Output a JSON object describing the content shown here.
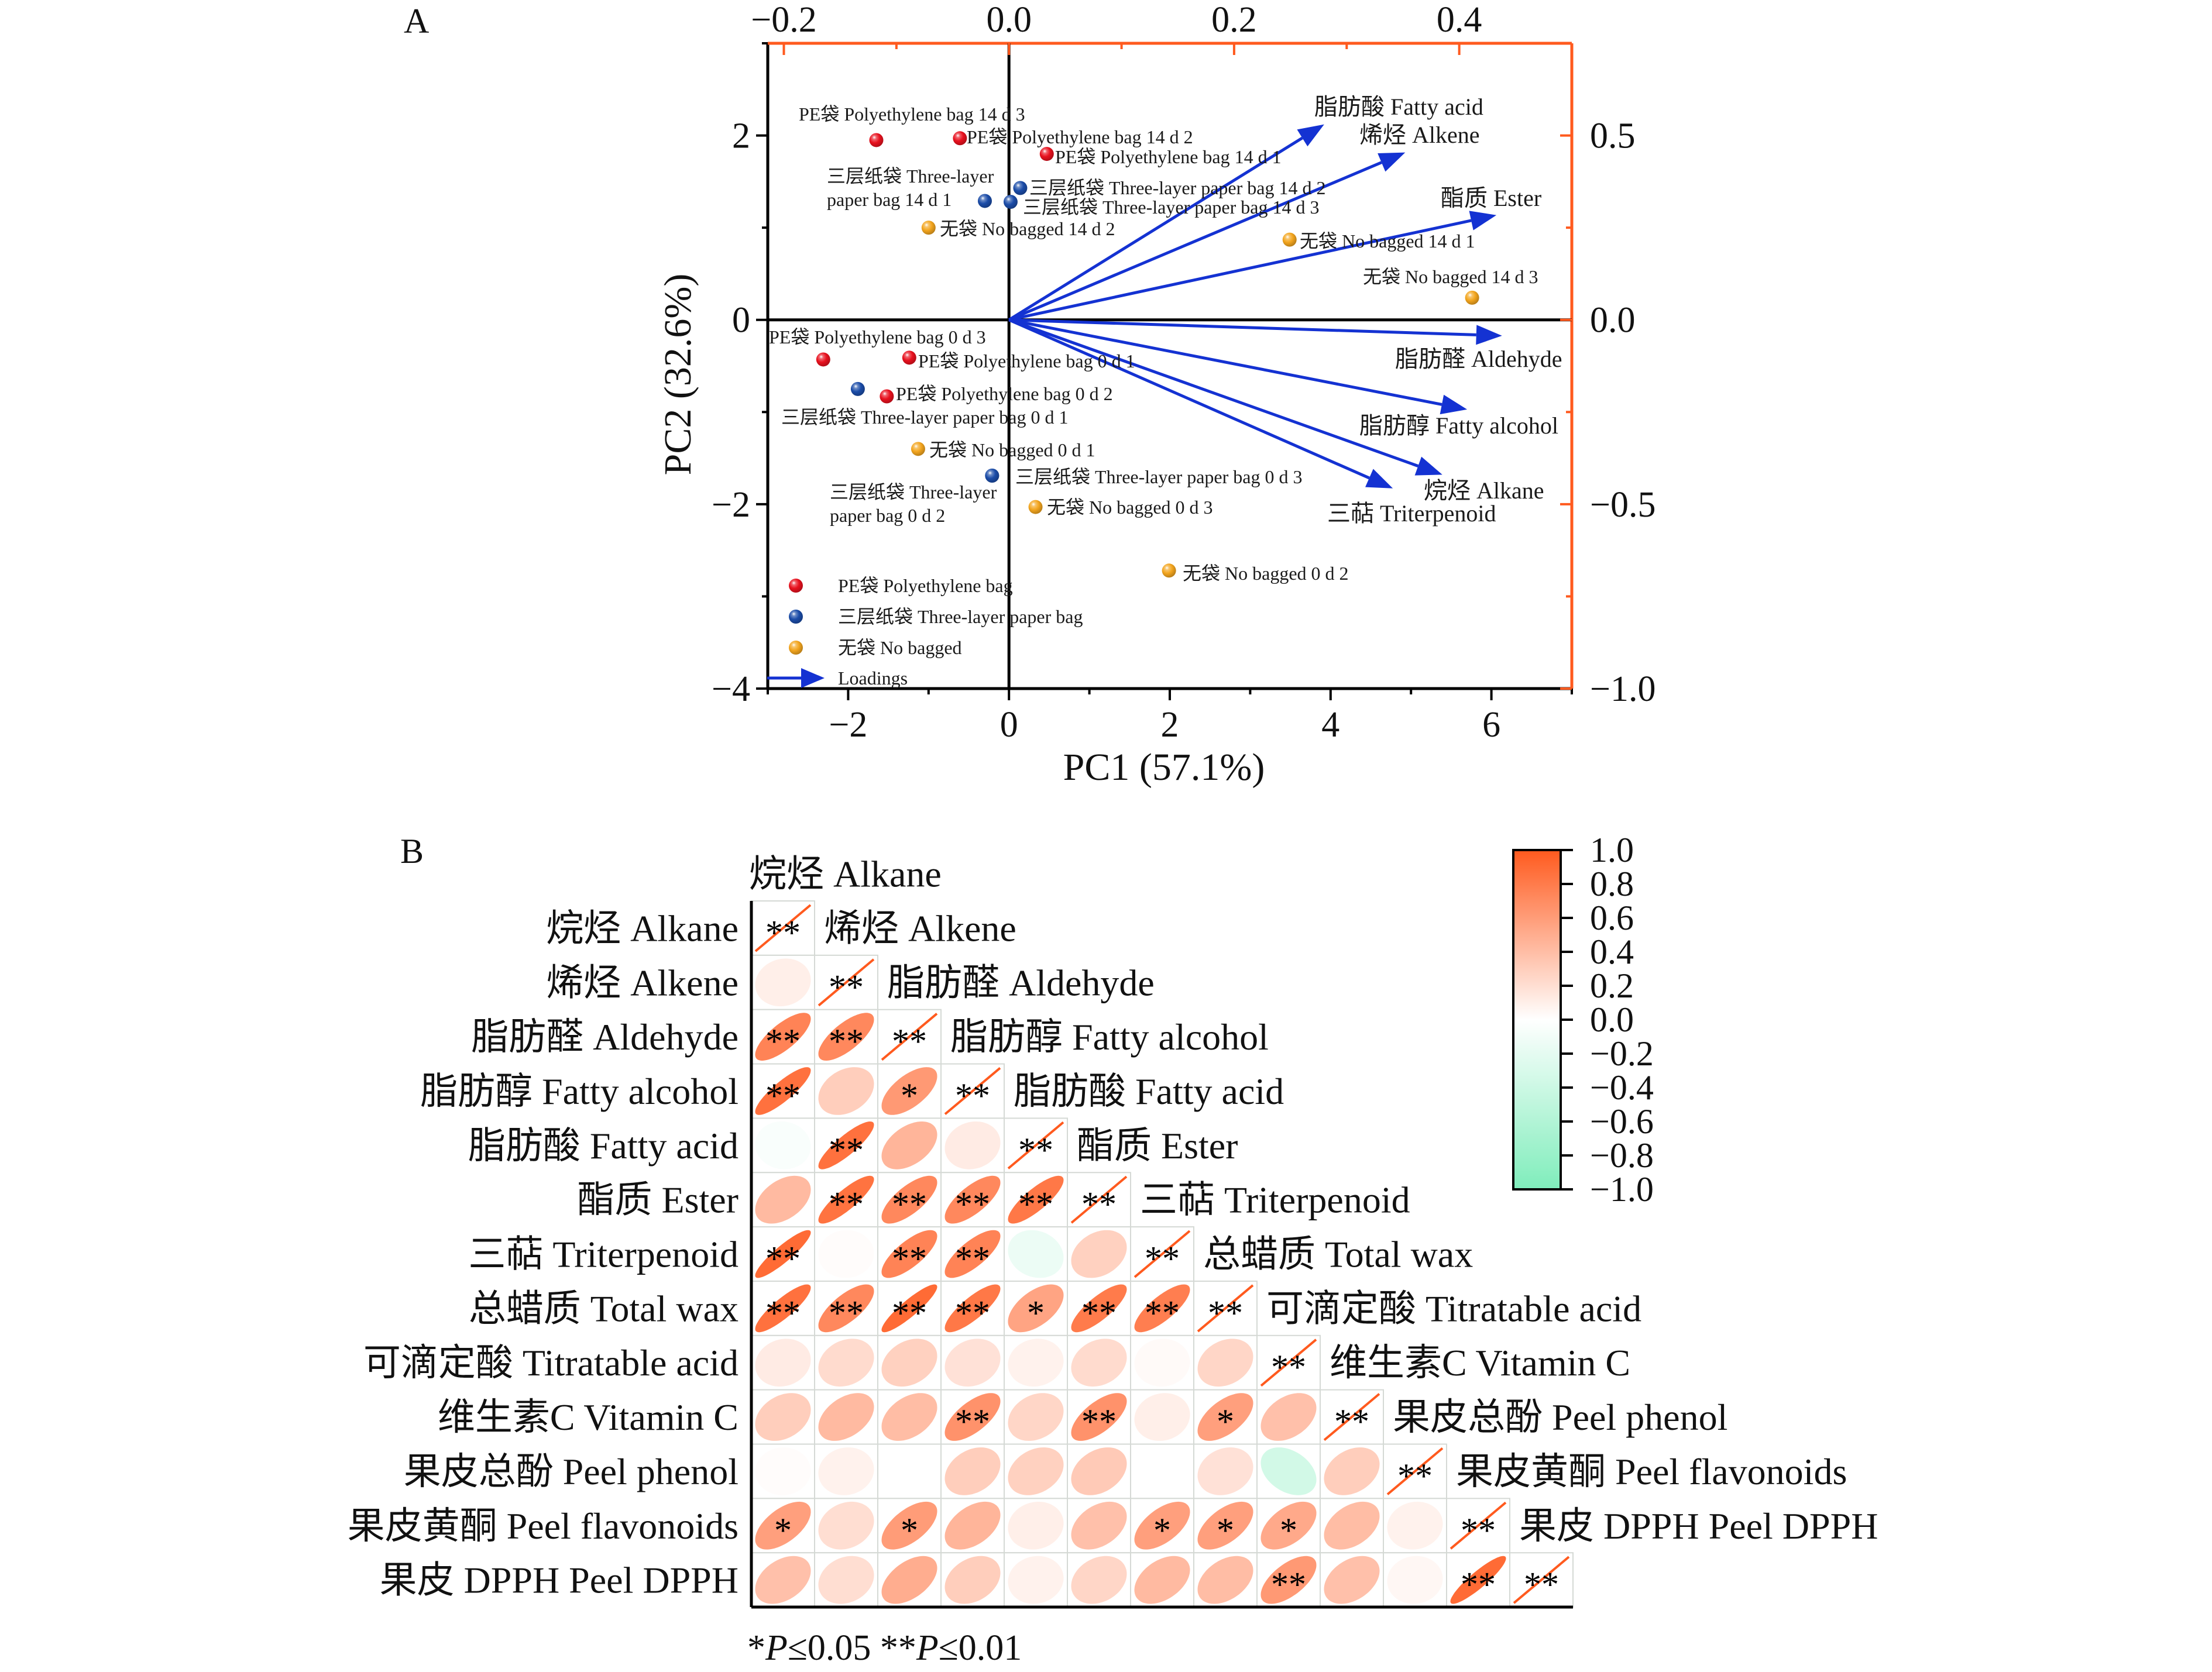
{
  "figure": {
    "panel_a_label": "A",
    "panel_b_label": "B"
  },
  "chart_data": [
    {
      "type": "scatter",
      "subtype": "PCA biplot (scores + loadings)",
      "title": "A",
      "xlabel": "PC1 (57.1%)",
      "ylabel": "PC2 (32.6%)",
      "xlim": [
        -3,
        7
      ],
      "ylim": [
        -4,
        3
      ],
      "x_ticks": [
        -2,
        0,
        2,
        4,
        6
      ],
      "x_tick_labels": [
        "−2",
        "0",
        "2",
        "4",
        "6"
      ],
      "y_ticks": [
        -4,
        -2,
        0,
        2
      ],
      "y_tick_labels": [
        "−4",
        "−2",
        "0",
        "2"
      ],
      "top_axis": {
        "lim": [
          -0.2143,
          0.5
        ],
        "ticks": [
          -0.2,
          0.0,
          0.2,
          0.4
        ],
        "tick_labels": [
          "−0.2",
          "0.0",
          "0.2",
          "0.4"
        ]
      },
      "right_axis": {
        "lim": [
          -1.0,
          0.75
        ],
        "ticks": [
          0.5,
          0.0,
          -0.5,
          -1.0
        ],
        "tick_labels": [
          "0.5",
          "0.0",
          "−0.5",
          "−1.0"
        ]
      },
      "grid": false,
      "colors": {
        "primary_axes": "#000000",
        "secondary_axes": "#FF5A1E",
        "loadings": "#1432D2"
      },
      "legend": {
        "position": "bottom-left",
        "loadings_label": "Loadings"
      },
      "series": [
        {
          "name": "PE袋 Polyethylene bag",
          "color": "#E8111E",
          "points": [
            {
              "label": [
                "PE袋 Polyethylene bag 14 d 3"
              ],
              "x": -1.65,
              "y": 1.95
            },
            {
              "label": [
                "PE袋 Polyethylene bag 14 d 2"
              ],
              "x": -0.61,
              "y": 1.97
            },
            {
              "label": [
                "PE袋 Polyethylene bag 14 d 1"
              ],
              "x": 0.47,
              "y": 1.8
            },
            {
              "label": [
                "PE袋 Polyethylene bag 0 d 3"
              ],
              "x": -2.31,
              "y": -0.43
            },
            {
              "label": [
                "PE袋 Polyethylene bag 0 d 1"
              ],
              "x": -1.24,
              "y": -0.41
            },
            {
              "label": [
                "PE袋 Polyethylene bag 0 d 2"
              ],
              "x": -1.52,
              "y": -0.83
            }
          ]
        },
        {
          "name": "三层纸袋 Three-layer paper bag",
          "color": "#1B4CA8",
          "points": [
            {
              "label": [
                "三层纸袋 Three-layer",
                "paper bag 14 d 1"
              ],
              "x": -0.3,
              "y": 1.29
            },
            {
              "label": [
                "三层纸袋 Three-layer paper bag 14 d 2"
              ],
              "x": 0.14,
              "y": 1.43
            },
            {
              "label": [
                "三层纸袋 Three-layer paper bag 14 d 3"
              ],
              "x": 0.02,
              "y": 1.28
            },
            {
              "label": [
                "三层纸袋 Three-layer paper bag 0 d 1"
              ],
              "x": -1.88,
              "y": -0.75
            },
            {
              "label": [
                "三层纸袋 Three-layer paper bag 0 d 3"
              ],
              "x": -0.21,
              "y": -1.69
            },
            {
              "label": [
                "三层纸袋 Three-layer",
                "paper bag 0 d 2"
              ],
              "x": -0.21,
              "y": -1.69
            }
          ]
        },
        {
          "name": "无袋 No bagged",
          "color": "#F3A51E",
          "points": [
            {
              "label": [
                "无袋 No bagged 14 d 2"
              ],
              "x": -1.0,
              "y": 1.0
            },
            {
              "label": [
                "无袋 No bagged 14 d 1"
              ],
              "x": 3.49,
              "y": 0.87
            },
            {
              "label": [
                "无袋 No bagged 14 d 3"
              ],
              "x": 5.76,
              "y": 0.24
            },
            {
              "label": [
                "无袋 No bagged 0 d 1"
              ],
              "x": -1.13,
              "y": -1.4
            },
            {
              "label": [
                "无袋 No bagged 0 d 3"
              ],
              "x": 0.33,
              "y": -2.03
            },
            {
              "label": [
                "无袋 No bagged 0 d 2"
              ],
              "x": 1.99,
              "y": -2.72
            }
          ]
        }
      ],
      "loadings": [
        {
          "name": "脂肪酸 Fatty acid",
          "x": 0.28,
          "y": 0.53
        },
        {
          "name": "烯烃 Alkene",
          "x": 0.352,
          "y": 0.454
        },
        {
          "name": "酯质 Ester",
          "x": 0.433,
          "y": 0.284
        },
        {
          "name": "脂肪醛 Aldehyde",
          "x": 0.438,
          "y": -0.043
        },
        {
          "name": "脂肪醇 Fatty alcohol",
          "x": 0.407,
          "y": -0.243
        },
        {
          "name": "烷烃 Alkane",
          "x": 0.385,
          "y": -0.42
        },
        {
          "name": "三萜 Triterpenoid",
          "x": 0.341,
          "y": -0.457
        }
      ]
    },
    {
      "type": "heatmap",
      "subtype": "correlation matrix, lower triangle, ellipse glyphs",
      "title": "B",
      "variables": [
        "烷烃 Alkane",
        "烯烃 Alkene",
        "脂肪醛 Aldehyde",
        "脂肪醇 Fatty alcohol",
        "脂肪酸 Fatty acid",
        "酯质 Ester",
        "三萜 Triterpenoid",
        "总蜡质 Total wax",
        "可滴定酸 Titratable acid",
        "维生素C Vitamin C",
        "果皮总酚 Peel phenol",
        "果皮黄酮 Peel flavonoids",
        "果皮 DPPH Peel DPPH"
      ],
      "matrix": [
        [
          1
        ],
        [
          0.1,
          1
        ],
        [
          0.75,
          0.72,
          1
        ],
        [
          0.86,
          0.3,
          0.62,
          1
        ],
        [
          -0.05,
          0.86,
          0.45,
          0.12,
          1
        ],
        [
          0.42,
          0.85,
          0.72,
          0.72,
          0.82,
          1
        ],
        [
          0.9,
          0.02,
          0.75,
          0.75,
          -0.15,
          0.28,
          1
        ],
        [
          0.86,
          0.72,
          0.9,
          0.82,
          0.55,
          0.8,
          0.78,
          1
        ],
        [
          0.12,
          0.22,
          0.28,
          0.18,
          0.08,
          0.22,
          0.03,
          0.25,
          1
        ],
        [
          0.3,
          0.42,
          0.4,
          0.66,
          0.25,
          0.66,
          0.1,
          0.58,
          0.38,
          1
        ],
        [
          0.02,
          0.08,
          0.0,
          0.3,
          0.28,
          0.32,
          0.0,
          0.18,
          -0.35,
          0.3,
          1
        ],
        [
          0.58,
          0.2,
          0.6,
          0.45,
          0.1,
          0.38,
          0.58,
          0.58,
          0.52,
          0.4,
          0.08,
          1
        ],
        [
          0.38,
          0.2,
          0.5,
          0.3,
          0.08,
          0.25,
          0.42,
          0.4,
          0.62,
          0.38,
          0.05,
          0.9,
          1
        ]
      ],
      "significance": [
        [
          "**"
        ],
        [
          "",
          "**"
        ],
        [
          "**",
          "**",
          "**"
        ],
        [
          "**",
          "",
          "*",
          "**"
        ],
        [
          "",
          "**",
          "",
          "",
          "**"
        ],
        [
          "",
          "**",
          "**",
          "**",
          "**",
          "**"
        ],
        [
          "**",
          "",
          "**",
          "**",
          "",
          "",
          "**"
        ],
        [
          "**",
          "**",
          "**",
          "**",
          "*",
          "**",
          "**",
          "**"
        ],
        [
          "",
          "",
          "",
          "",
          "",
          "",
          "",
          "",
          "**"
        ],
        [
          "",
          "",
          "",
          "**",
          "",
          "**",
          "",
          "*",
          "",
          "**"
        ],
        [
          "",
          "",
          "",
          "",
          "",
          "",
          "",
          "",
          "",
          "",
          "**"
        ],
        [
          "*",
          "",
          "*",
          "",
          "",
          "",
          "*",
          "*",
          "*",
          "",
          "",
          "**"
        ],
        [
          "",
          "",
          "",
          "",
          "",
          "",
          "",
          "",
          "**",
          "",
          "",
          "**",
          "**"
        ]
      ],
      "colorbar": {
        "min": -1.0,
        "max": 1.0,
        "ticks": [
          1.0,
          0.8,
          0.6,
          0.4,
          0.2,
          0.0,
          -0.2,
          -0.4,
          -0.6,
          -0.8,
          -1.0
        ],
        "tick_labels": [
          "1.0",
          "0.8",
          "0.6",
          "0.4",
          "0.2",
          "0.0",
          "−0.2",
          "−0.4",
          "−0.6",
          "−0.8",
          "−1.0"
        ],
        "colors": {
          "max": "#FF5A1E",
          "mid": "#FFFFFF",
          "min": "#7FEDBB"
        },
        "position": "top-right"
      },
      "note_parts": [
        "*",
        "P",
        "≤0.05 **",
        "P",
        "≤0.01"
      ]
    }
  ]
}
